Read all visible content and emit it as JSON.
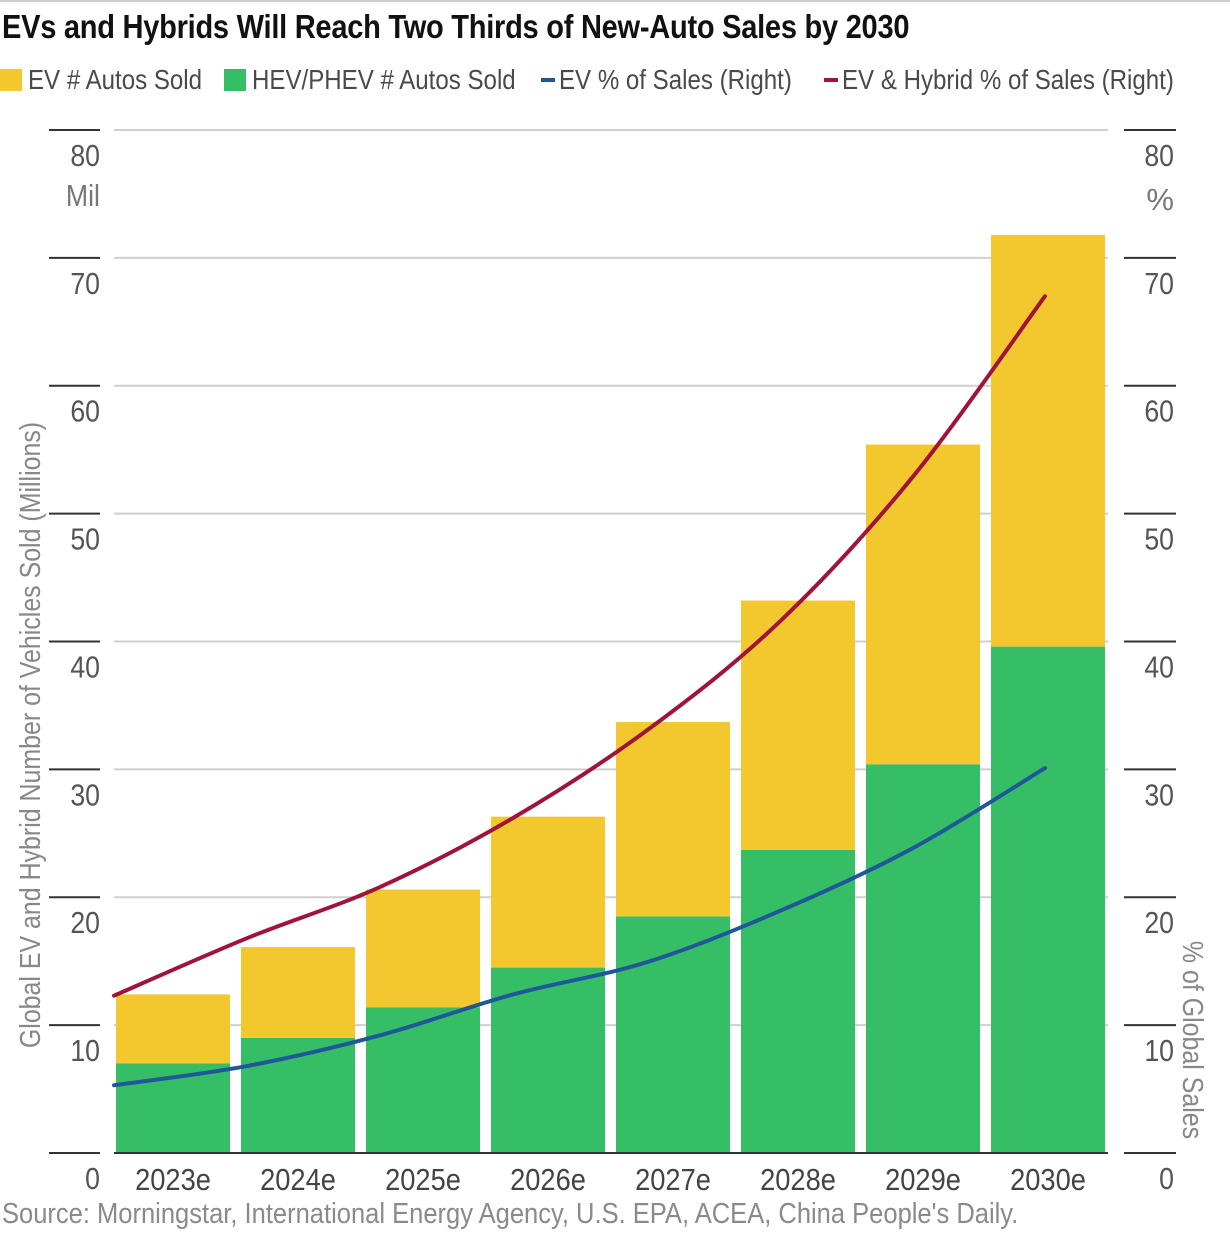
{
  "title": "EVs and Hybrids Will Reach Two Thirds of New-Auto Sales by 2030",
  "source": "Source: Morningstar, International Energy Agency, U.S. EPA, ACEA, China People's Daily.",
  "legend": [
    {
      "label": "EV # Autos Sold",
      "kind": "box",
      "color": "#F3C72E"
    },
    {
      "label": "HEV/PHEV # Autos Sold",
      "kind": "box",
      "color": "#35BE66"
    },
    {
      "label": "EV % of Sales (Right)",
      "kind": "line",
      "color": "#1F5799"
    },
    {
      "label": "EV & Hybrid % of Sales (Right)",
      "kind": "line",
      "color": "#A0143A"
    }
  ],
  "chart_data": {
    "type": "bar",
    "stacked": true,
    "categories": [
      "2023e",
      "2024e",
      "2025e",
      "2026e",
      "2027e",
      "2028e",
      "2029e",
      "2030e"
    ],
    "series": [
      {
        "name": "HEV/PHEV # Autos Sold",
        "axis": "left",
        "color": "#35BE66",
        "values": [
          7.0,
          9.0,
          11.4,
          14.5,
          18.5,
          23.7,
          30.4,
          39.6
        ]
      },
      {
        "name": "EV # Autos Sold",
        "axis": "left",
        "color": "#F3C72E",
        "values": [
          5.4,
          7.1,
          9.2,
          11.8,
          15.2,
          19.5,
          25.0,
          32.2
        ]
      }
    ],
    "line_series": [
      {
        "name": "EV % of Sales (Right)",
        "axis": "right",
        "color": "#1F5799",
        "values": [
          5.3,
          6.8,
          9.2,
          12.4,
          14.9,
          18.9,
          23.8,
          30.1
        ]
      },
      {
        "name": "EV & Hybrid % of Sales (Right)",
        "axis": "right",
        "color": "#A0143A",
        "values": [
          12.3,
          16.8,
          20.8,
          26.2,
          33.0,
          41.5,
          52.8,
          67.0
        ]
      }
    ],
    "y_left": {
      "label": "Global EV and Hybrid Number of Vehicles Sold (Millions)",
      "range": [
        0,
        80
      ],
      "ticks": [
        "0",
        "10",
        "20",
        "30",
        "40",
        "50",
        "60",
        "70",
        "80"
      ],
      "top_unit": "Mil"
    },
    "y_right": {
      "label": "% of Global Sales",
      "range": [
        0,
        80
      ],
      "ticks": [
        "0",
        "10",
        "20",
        "30",
        "40",
        "50",
        "60",
        "70",
        "80"
      ],
      "top_unit": "%"
    },
    "grid": true
  }
}
